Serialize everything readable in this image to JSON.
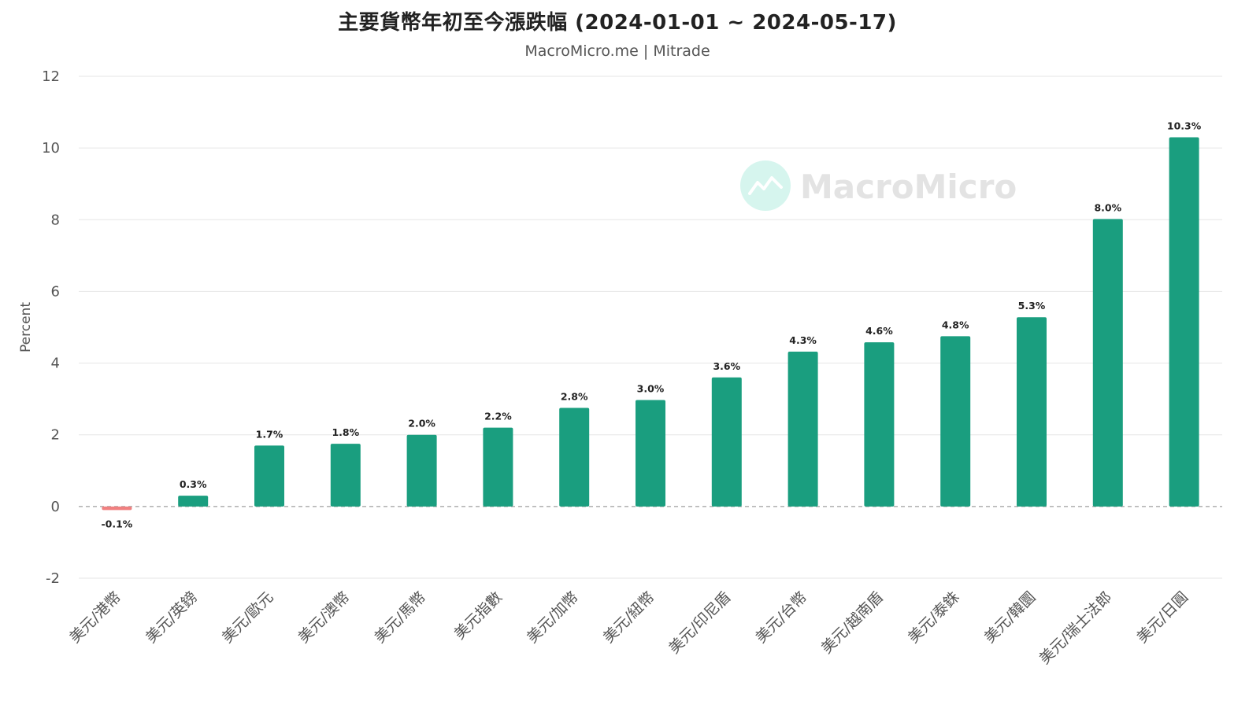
{
  "title": "主要貨幣年初至今漲跌幅 (2024-01-01 ~ 2024-05-17)",
  "subtitle": "MacroMicro.me | Mitrade",
  "watermark": "MacroMicro",
  "colors": {
    "positive": "#1a9e7f",
    "negative": "#f08080",
    "grid": "#e6e6e6",
    "zero_line": "#888888",
    "watermark_circle": "#d6f5ee"
  },
  "chart_data": {
    "type": "bar",
    "title": "主要貨幣年初至今漲跌幅 (2024-01-01 ~ 2024-05-17)",
    "subtitle": "MacroMicro.me | Mitrade",
    "ylabel": "Percent",
    "xlabel": "",
    "ylim": [
      -2,
      12
    ],
    "yticks": [
      -2,
      0,
      2,
      4,
      6,
      8,
      10,
      12
    ],
    "grid": true,
    "categories": [
      "美元/港幣",
      "美元/英鎊",
      "美元/歐元",
      "美元/澳幣",
      "美元/馬幣",
      "美元指數",
      "美元/加幣",
      "美元/紐幣",
      "美元/印尼盾",
      "美元/台幣",
      "美元/越南盾",
      "美元/泰銖",
      "美元/韓圜",
      "美元/瑞士法郎",
      "美元/日圓"
    ],
    "values": [
      -0.1,
      0.3,
      1.7,
      1.75,
      2.0,
      2.2,
      2.75,
      2.97,
      3.6,
      4.32,
      4.58,
      4.75,
      5.28,
      8.02,
      10.3
    ],
    "data_labels": [
      "-0.1%",
      "0.3%",
      "1.7%",
      "1.8%",
      "2.0%",
      "2.2%",
      "2.8%",
      "3.0%",
      "3.6%",
      "4.3%",
      "4.6%",
      "4.8%",
      "5.3%",
      "8.0%",
      "10.3%"
    ]
  }
}
